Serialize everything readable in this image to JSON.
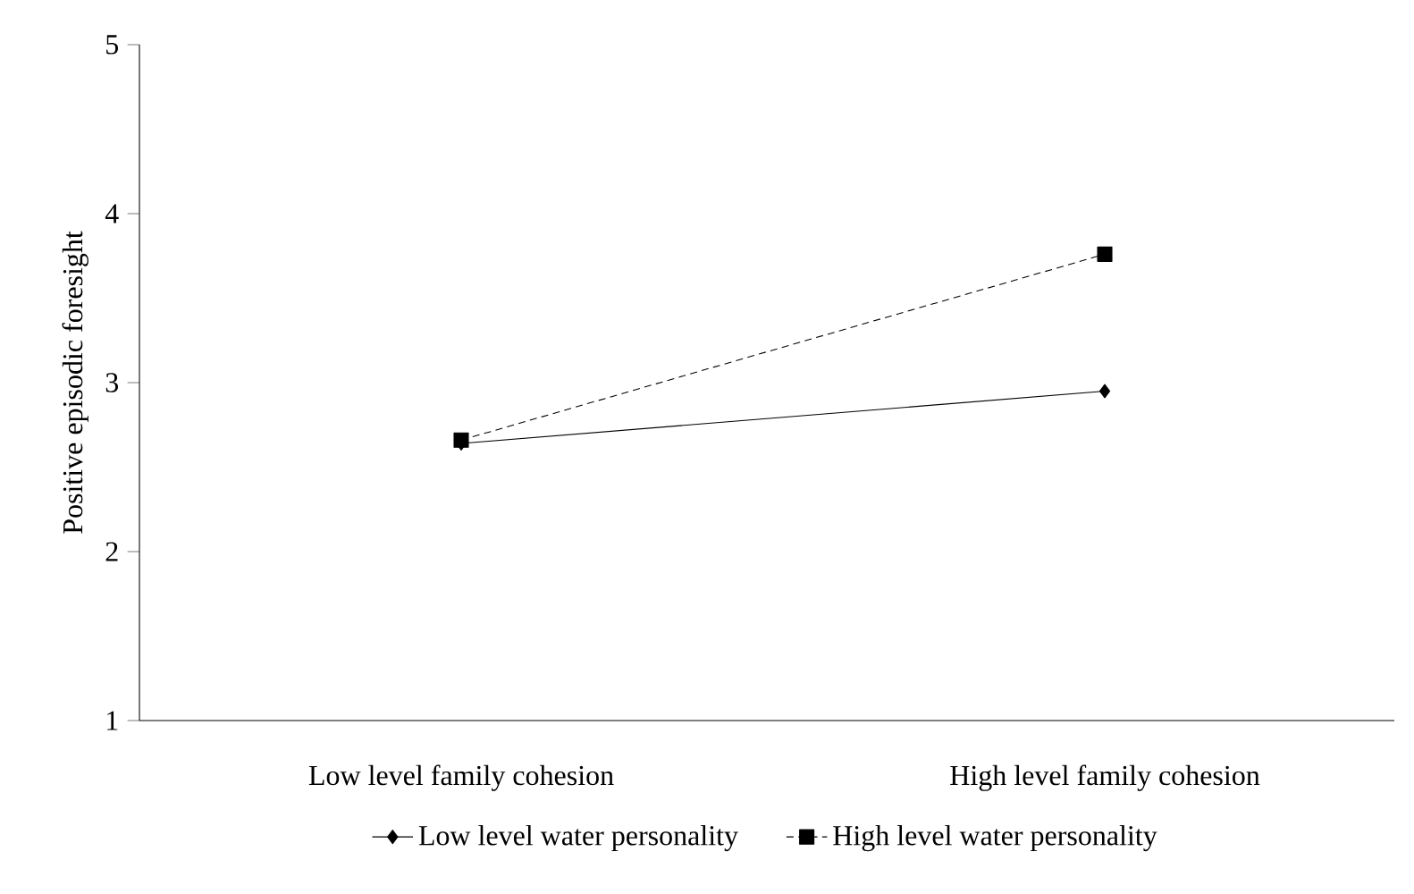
{
  "chart_data": {
    "type": "line",
    "ylabel": "Positive episodic foresight",
    "categories": [
      "Low level family cohesion",
      "High level family cohesion"
    ],
    "series": [
      {
        "name": "Low level water personality",
        "color": "#000000",
        "values": [
          2.64,
          2.95
        ],
        "marker": "diamond",
        "line_style": "solid"
      },
      {
        "name": "High level water personality",
        "color": "#000000",
        "values": [
          2.66,
          3.76
        ],
        "marker": "square",
        "line_style": "dashed"
      }
    ],
    "ylim": [
      1,
      5
    ],
    "yticks": [
      1,
      2,
      3,
      4,
      5
    ],
    "grid": false,
    "legend": "bottom"
  }
}
